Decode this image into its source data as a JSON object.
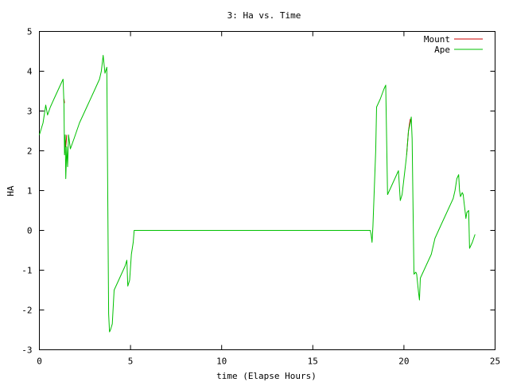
{
  "chart_data": {
    "type": "line",
    "title": "3: Ha vs. Time",
    "xlabel": "time (Elapse Hours)",
    "ylabel": "HA",
    "xlim": [
      0,
      25
    ],
    "ylim": [
      -3,
      5
    ],
    "x_ticks": [
      0,
      5,
      10,
      15,
      20,
      25
    ],
    "y_ticks": [
      -3,
      -2,
      -1,
      0,
      1,
      2,
      3,
      4,
      5
    ],
    "grid": false,
    "legend_position": "top-right",
    "series": [
      {
        "name": "Mount",
        "color": "#cc0000",
        "segments": [
          [
            [
              1.35,
              3.3
            ],
            [
              1.38,
              3.2
            ]
          ],
          [
            [
              1.4,
              1.95
            ],
            [
              1.42,
              2.3
            ],
            [
              1.45,
              2.1
            ],
            [
              1.5,
              2.4
            ]
          ],
          [
            [
              20.15,
              1.9
            ],
            [
              20.25,
              2.5
            ],
            [
              20.35,
              2.8
            ]
          ]
        ]
      },
      {
        "name": "Ape",
        "color": "#00c000",
        "segments": [
          [
            [
              0.0,
              2.4
            ],
            [
              0.1,
              2.55
            ],
            [
              0.2,
              2.7
            ],
            [
              0.3,
              3.0
            ],
            [
              0.35,
              3.15
            ],
            [
              0.45,
              2.9
            ],
            [
              0.6,
              3.1
            ],
            [
              0.8,
              3.3
            ],
            [
              1.0,
              3.5
            ],
            [
              1.3,
              3.8
            ],
            [
              1.35,
              3.2
            ],
            [
              1.38,
              1.9
            ],
            [
              1.42,
              2.4
            ],
            [
              1.45,
              1.3
            ],
            [
              1.5,
              2.1
            ],
            [
              1.55,
              1.6
            ],
            [
              1.6,
              2.4
            ],
            [
              1.7,
              2.05
            ],
            [
              1.9,
              2.3
            ],
            [
              2.2,
              2.7
            ],
            [
              2.6,
              3.1
            ],
            [
              3.0,
              3.5
            ],
            [
              3.3,
              3.8
            ],
            [
              3.4,
              4.0
            ],
            [
              3.5,
              4.4
            ],
            [
              3.6,
              3.95
            ],
            [
              3.7,
              4.1
            ],
            [
              3.78,
              -0.8
            ],
            [
              3.8,
              -2.1
            ],
            [
              3.85,
              -2.55
            ],
            [
              3.9,
              -2.5
            ],
            [
              4.0,
              -2.35
            ],
            [
              4.1,
              -1.5
            ],
            [
              4.3,
              -1.3
            ],
            [
              4.7,
              -0.9
            ],
            [
              4.8,
              -0.75
            ],
            [
              4.85,
              -1.4
            ],
            [
              4.95,
              -1.25
            ],
            [
              5.05,
              -0.6
            ],
            [
              5.15,
              -0.3
            ],
            [
              5.2,
              0.0
            ],
            [
              18.15,
              0.0
            ],
            [
              18.2,
              -0.1
            ],
            [
              18.25,
              -0.3
            ],
            [
              18.3,
              0.1
            ],
            [
              18.45,
              2.0
            ],
            [
              18.5,
              3.1
            ],
            [
              18.7,
              3.3
            ],
            [
              18.9,
              3.55
            ],
            [
              19.0,
              3.65
            ],
            [
              19.1,
              0.9
            ],
            [
              19.3,
              1.1
            ],
            [
              19.6,
              1.4
            ],
            [
              19.7,
              1.5
            ],
            [
              19.8,
              0.75
            ],
            [
              19.9,
              0.9
            ],
            [
              20.1,
              1.7
            ],
            [
              20.15,
              1.9
            ],
            [
              20.25,
              2.5
            ],
            [
              20.35,
              2.7
            ],
            [
              20.4,
              2.85
            ],
            [
              20.45,
              2.3
            ],
            [
              20.5,
              0.5
            ],
            [
              20.55,
              -1.1
            ],
            [
              20.65,
              -1.05
            ],
            [
              20.7,
              -1.1
            ],
            [
              20.8,
              -1.55
            ],
            [
              20.85,
              -1.75
            ],
            [
              20.9,
              -1.2
            ],
            [
              21.2,
              -0.9
            ],
            [
              21.5,
              -0.6
            ],
            [
              21.6,
              -0.4
            ],
            [
              21.7,
              -0.2
            ],
            [
              22.0,
              0.1
            ],
            [
              22.4,
              0.5
            ],
            [
              22.7,
              0.8
            ],
            [
              22.8,
              1.0
            ],
            [
              22.9,
              1.3
            ],
            [
              23.0,
              1.4
            ],
            [
              23.05,
              1.0
            ],
            [
              23.1,
              0.85
            ],
            [
              23.2,
              0.95
            ],
            [
              23.25,
              0.9
            ],
            [
              23.3,
              0.7
            ],
            [
              23.35,
              0.5
            ],
            [
              23.4,
              0.3
            ],
            [
              23.45,
              0.45
            ],
            [
              23.55,
              0.5
            ],
            [
              23.6,
              -0.45
            ],
            [
              23.75,
              -0.3
            ],
            [
              23.9,
              -0.1
            ]
          ]
        ]
      }
    ]
  }
}
